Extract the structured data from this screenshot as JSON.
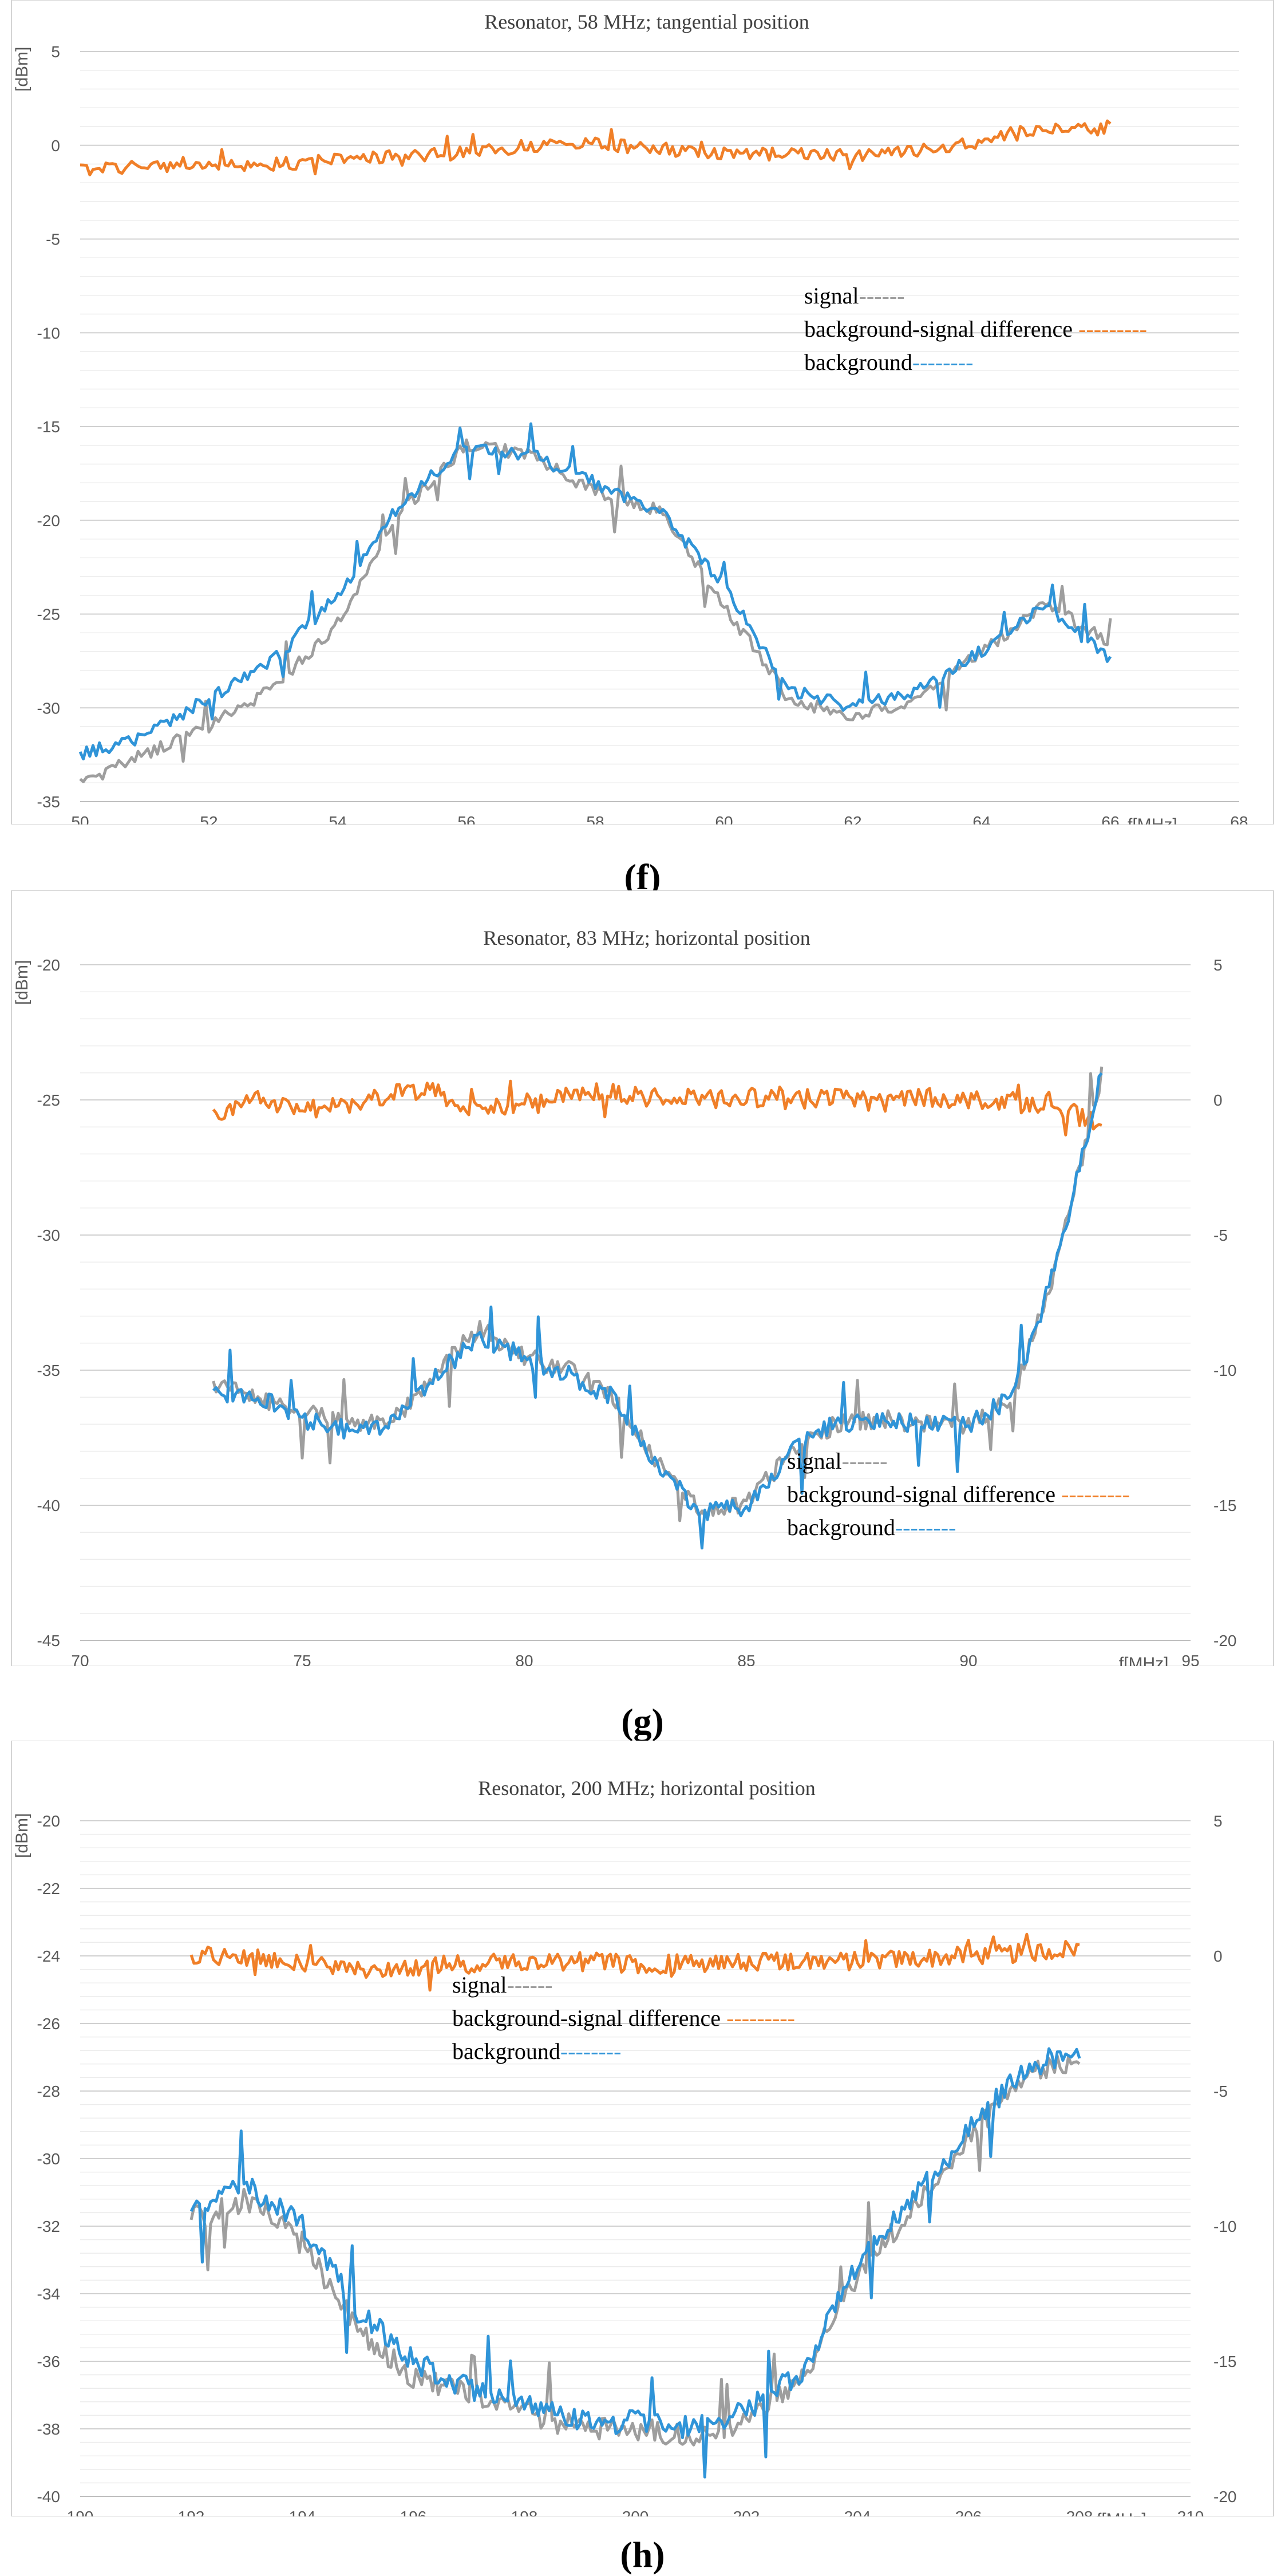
{
  "chart_data": [
    {
      "type": "line",
      "panel": "f",
      "title": "Resonator, 58 MHz; tangential position",
      "ylabel": "[dBm]",
      "xlabel": "f[MHz]",
      "xlim": [
        50,
        68
      ],
      "ylim": [
        -35,
        5
      ],
      "xticks": [
        "50",
        "52",
        "54",
        "56",
        "58",
        "60",
        "62",
        "64",
        "66",
        "68"
      ],
      "yticks": [
        "5",
        "0",
        "-5",
        "-10",
        "-15",
        "-20",
        "-25",
        "-30",
        "-35"
      ],
      "legend": [
        {
          "label": "signal------",
          "color": "#9e9e9e"
        },
        {
          "label": "background-signal difference ---------",
          "color": "#f07f28"
        },
        {
          "label": "background--------",
          "color": "#2f94d8"
        }
      ],
      "x_range": [
        50,
        66
      ],
      "series": [
        {
          "name": "signal",
          "color": "#9e9e9e",
          "axis": "left",
          "x": [
            50,
            51,
            52,
            53,
            54,
            55,
            56,
            57,
            58,
            59,
            60,
            61,
            62,
            63,
            64,
            65,
            66
          ],
          "values": [
            -34,
            -32.5,
            -31,
            -29,
            -25.5,
            -19.5,
            -16,
            -16.5,
            -18.5,
            -19.5,
            -24.5,
            -29.5,
            -30.5,
            -29.5,
            -27,
            -24.5,
            -26.5
          ]
        },
        {
          "name": "background",
          "color": "#2f94d8",
          "axis": "left",
          "x": [
            50,
            51,
            52,
            53,
            54,
            55,
            56,
            57,
            58,
            59,
            60,
            61,
            62,
            63,
            64,
            65,
            66
          ],
          "values": [
            -32.5,
            -31.5,
            -29.5,
            -27.5,
            -24,
            -19,
            -16,
            -16.5,
            -18,
            -19.5,
            -23.5,
            -29,
            -30,
            -29,
            -27,
            -24.5,
            -27.5
          ]
        },
        {
          "name": "background-signal difference",
          "color": "#f07f28",
          "axis": "left",
          "x": [
            50,
            51,
            52,
            53,
            54,
            55,
            56,
            57,
            58,
            59,
            60,
            61,
            62,
            63,
            64,
            65,
            66
          ],
          "values": [
            -1.3,
            -1.1,
            -1.0,
            -1.0,
            -0.8,
            -0.6,
            -0.4,
            0.0,
            0.1,
            -0.2,
            -0.4,
            -0.5,
            -0.5,
            -0.3,
            0.2,
            0.8,
            1.0
          ]
        }
      ]
    },
    {
      "type": "line",
      "panel": "g",
      "title": "Resonator, 83 MHz; horizontal position",
      "ylabel": "[dBm]",
      "xlabel": "f[MHz]",
      "xlim": [
        70,
        95
      ],
      "ylim": [
        -45,
        -20
      ],
      "y2lim": [
        -20,
        5
      ],
      "xticks": [
        "70",
        "75",
        "80",
        "85",
        "90",
        "95"
      ],
      "yticks": [
        "-20",
        "-25",
        "-30",
        "-35",
        "-40",
        "-45"
      ],
      "y2ticks": [
        "5",
        "0",
        "-5",
        "-10",
        "-15",
        "-20"
      ],
      "legend": [
        {
          "label": "signal------",
          "color": "#9e9e9e"
        },
        {
          "label": "background-signal difference ---------",
          "color": "#f07f28"
        },
        {
          "label": "background--------",
          "color": "#2f94d8"
        }
      ],
      "x_range": [
        73,
        93
      ],
      "series": [
        {
          "name": "signal",
          "color": "#9e9e9e",
          "axis": "left",
          "x": [
            73,
            74,
            75,
            76,
            77,
            78,
            79,
            80,
            81,
            82,
            83,
            84,
            85,
            86,
            87,
            88,
            89,
            90,
            91,
            92,
            93
          ],
          "values": [
            -35.5,
            -36,
            -36.5,
            -37,
            -37,
            -35,
            -33.5,
            -34.5,
            -35,
            -36,
            -38.5,
            -40.2,
            -40,
            -38,
            -37,
            -36.8,
            -37,
            -37,
            -36,
            -31,
            -24
          ]
        },
        {
          "name": "background",
          "color": "#2f94d8",
          "axis": "left",
          "x": [
            73,
            74,
            75,
            76,
            77,
            78,
            79,
            80,
            81,
            82,
            83,
            84,
            85,
            86,
            87,
            88,
            89,
            90,
            91,
            92,
            93
          ],
          "values": [
            -35.8,
            -36,
            -36.8,
            -37.2,
            -37,
            -35.2,
            -33.8,
            -34.5,
            -35.2,
            -36,
            -38.5,
            -40.3,
            -40,
            -38,
            -37,
            -36.8,
            -37,
            -37,
            -36,
            -31,
            -24
          ]
        },
        {
          "name": "background-signal difference",
          "color": "#f07f28",
          "axis": "right",
          "x": [
            73,
            74,
            75,
            76,
            77,
            78,
            79,
            80,
            81,
            82,
            83,
            84,
            85,
            86,
            87,
            88,
            89,
            90,
            91,
            92,
            93
          ],
          "values": [
            -0.5,
            0,
            -0.3,
            -0.2,
            0.2,
            0.3,
            -0.5,
            0,
            0.2,
            0.3,
            0.2,
            0,
            0.1,
            0,
            0.1,
            0,
            0.1,
            0,
            0,
            -0.2,
            -1
          ]
        }
      ]
    },
    {
      "type": "line",
      "panel": "h",
      "title": "Resonator, 200 MHz; horizontal position",
      "ylabel": "[dBm]",
      "xlabel": "f[MHz]",
      "xlim": [
        190,
        210
      ],
      "ylim": [
        -40,
        -20
      ],
      "y2lim": [
        -20,
        5
      ],
      "xticks": [
        "190",
        "192",
        "194",
        "196",
        "198",
        "200",
        "202",
        "204",
        "206",
        "208",
        "210"
      ],
      "yticks": [
        "-20",
        "-22",
        "-24",
        "-26",
        "-28",
        "-30",
        "-32",
        "-34",
        "-36",
        "-38",
        "-40"
      ],
      "y2ticks": [
        "5",
        "0",
        "-5",
        "-10",
        "-15",
        "-20"
      ],
      "legend": [
        {
          "label": "signal------",
          "color": "#9e9e9e"
        },
        {
          "label": "background-signal difference ---------",
          "color": "#f07f28"
        },
        {
          "label": "background--------",
          "color": "#2f94d8"
        }
      ],
      "x_range": [
        192,
        208
      ],
      "series": [
        {
          "name": "signal",
          "color": "#9e9e9e",
          "axis": "left",
          "x": [
            192,
            193,
            194,
            195,
            196,
            197,
            198,
            199,
            200,
            201,
            202,
            203,
            204,
            205,
            206,
            207,
            208
          ],
          "values": [
            -31.8,
            -31.2,
            -32.5,
            -35,
            -36.5,
            -37,
            -37.5,
            -38,
            -38,
            -38.2,
            -37.8,
            -36.5,
            -33.5,
            -31.5,
            -29.5,
            -27.5,
            -27
          ]
        },
        {
          "name": "background",
          "color": "#2f94d8",
          "axis": "left",
          "x": [
            192,
            193,
            194,
            195,
            196,
            197,
            198,
            199,
            200,
            201,
            202,
            203,
            204,
            205,
            206,
            207,
            208
          ],
          "values": [
            -31.5,
            -30.8,
            -32,
            -34.5,
            -36,
            -36.8,
            -37.3,
            -37.8,
            -37.8,
            -38,
            -37.5,
            -36.3,
            -33.2,
            -31.2,
            -29.2,
            -27.3,
            -26.8
          ]
        },
        {
          "name": "background-signal difference",
          "color": "#f07f28",
          "axis": "right",
          "x": [
            192,
            193,
            194,
            195,
            196,
            197,
            198,
            199,
            200,
            201,
            202,
            203,
            204,
            205,
            206,
            207,
            208
          ],
          "values": [
            0,
            0,
            -0.3,
            -0.5,
            -0.4,
            -0.3,
            -0.2,
            -0.2,
            -0.3,
            -0.3,
            -0.2,
            -0.2,
            -0.2,
            -0.1,
            0,
            0.1,
            0.3
          ]
        }
      ]
    }
  ],
  "panel_labels": [
    "(f)",
    "(g)",
    "(h)"
  ]
}
